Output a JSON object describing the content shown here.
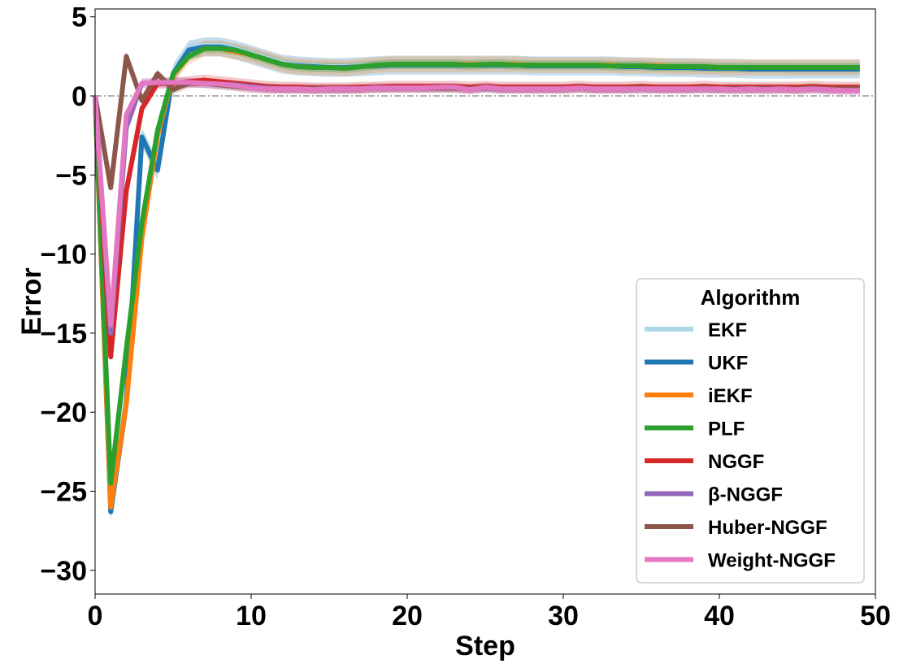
{
  "chart_data": {
    "type": "line",
    "xlabel": "Step",
    "ylabel": "Error",
    "xlim": [
      0,
      50
    ],
    "ylim": [
      -31.5,
      5.5
    ],
    "xticks": [
      0,
      10,
      20,
      30,
      40,
      50
    ],
    "yticks": [
      5,
      0,
      -5,
      -10,
      -15,
      -20,
      -25,
      -30
    ],
    "ytick_labels": [
      "5",
      "0",
      "−5",
      "−10",
      "−15",
      "−20",
      "−25",
      "−30"
    ],
    "reference_line": {
      "y": 0,
      "style": "dash-dot",
      "color": "#808080"
    },
    "legend": {
      "title": "Algorithm",
      "placement": "lower-right"
    },
    "grid": false,
    "series": [
      {
        "name": "EKF",
        "color": "#add8e6",
        "x": [
          0,
          1,
          2,
          3,
          4,
          5,
          6,
          7,
          8,
          9,
          10,
          11,
          12,
          13,
          14,
          15,
          16,
          17,
          18,
          19,
          20,
          21,
          22,
          23,
          24,
          25,
          26,
          27,
          28,
          29,
          30,
          31,
          32,
          33,
          34,
          35,
          36,
          37,
          38,
          39,
          40,
          41,
          42,
          43,
          44,
          45,
          46,
          47,
          48,
          49
        ],
        "values": [
          0,
          -26,
          -19,
          -2.5,
          -4.5,
          1.5,
          3.0,
          3.2,
          3.2,
          3.0,
          2.7,
          2.4,
          2.1,
          1.95,
          1.9,
          1.85,
          1.85,
          1.9,
          1.95,
          2.0,
          2.0,
          2.0,
          2.0,
          2.0,
          2.0,
          2.0,
          2.0,
          2.0,
          1.95,
          1.95,
          1.95,
          1.95,
          1.95,
          1.95,
          1.9,
          1.9,
          1.85,
          1.85,
          1.85,
          1.8,
          1.8,
          1.8,
          1.75,
          1.75,
          1.75,
          1.7,
          1.7,
          1.7,
          1.7,
          1.7
        ],
        "band": 0.3
      },
      {
        "name": "UKF",
        "color": "#1f77b4",
        "x": [
          0,
          1,
          2,
          3,
          4,
          5,
          6,
          7,
          8,
          9,
          10,
          11,
          12,
          13,
          14,
          15,
          16,
          17,
          18,
          19,
          20,
          21,
          22,
          23,
          24,
          25,
          26,
          27,
          28,
          29,
          30,
          31,
          32,
          33,
          34,
          35,
          36,
          37,
          38,
          39,
          40,
          41,
          42,
          43,
          44,
          45,
          46,
          47,
          48,
          49
        ],
        "values": [
          0,
          -26.3,
          -19.5,
          -2.6,
          -4.7,
          1.4,
          2.9,
          3.1,
          3.1,
          2.9,
          2.6,
          2.3,
          2.0,
          1.9,
          1.85,
          1.8,
          1.8,
          1.85,
          1.9,
          1.95,
          1.95,
          1.95,
          1.95,
          1.95,
          1.95,
          1.95,
          1.95,
          1.95,
          1.9,
          1.9,
          1.9,
          1.9,
          1.9,
          1.9,
          1.85,
          1.85,
          1.8,
          1.8,
          1.8,
          1.75,
          1.75,
          1.75,
          1.7,
          1.7,
          1.7,
          1.7,
          1.7,
          1.7,
          1.7,
          1.7
        ],
        "band": 0.6
      },
      {
        "name": "iEKF",
        "color": "#ff7f0e",
        "x": [
          0,
          1,
          2,
          3,
          4,
          5,
          6,
          7,
          8,
          9,
          10,
          11,
          12,
          13,
          14,
          15,
          16,
          17,
          18,
          19,
          20,
          21,
          22,
          23,
          24,
          25,
          26,
          27,
          28,
          29,
          30,
          31,
          32,
          33,
          34,
          35,
          36,
          37,
          38,
          39,
          40,
          41,
          42,
          43,
          44,
          45,
          46,
          47,
          48,
          49
        ],
        "values": [
          0,
          -26,
          -19.5,
          -9,
          -2.5,
          1.3,
          2.5,
          3.0,
          3.0,
          2.8,
          2.6,
          2.3,
          2.0,
          1.85,
          1.8,
          1.8,
          1.75,
          1.85,
          1.95,
          2.0,
          2.0,
          2.0,
          2.0,
          2.0,
          2.0,
          2.0,
          2.0,
          2.0,
          1.95,
          1.95,
          1.95,
          1.95,
          1.95,
          1.95,
          1.9,
          1.9,
          1.9,
          1.85,
          1.85,
          1.85,
          1.8,
          1.8,
          1.8,
          1.8,
          1.8,
          1.8,
          1.8,
          1.8,
          1.8,
          1.8
        ],
        "band": 0.5
      },
      {
        "name": "PLF",
        "color": "#2ca02c",
        "x": [
          0,
          1,
          2,
          3,
          4,
          5,
          6,
          7,
          8,
          9,
          10,
          11,
          12,
          13,
          14,
          15,
          16,
          17,
          18,
          19,
          20,
          21,
          22,
          23,
          24,
          25,
          26,
          27,
          28,
          29,
          30,
          31,
          32,
          33,
          34,
          35,
          36,
          37,
          38,
          39,
          40,
          41,
          42,
          43,
          44,
          45,
          46,
          47,
          48,
          49
        ],
        "values": [
          0,
          -24.5,
          -16,
          -8,
          -2.2,
          1.4,
          2.5,
          3.0,
          3.0,
          2.9,
          2.6,
          2.3,
          2.0,
          1.85,
          1.8,
          1.8,
          1.75,
          1.85,
          1.95,
          2.0,
          2.0,
          2.0,
          2.0,
          2.0,
          1.95,
          2.0,
          2.0,
          1.95,
          1.95,
          1.95,
          1.95,
          1.95,
          1.95,
          1.9,
          1.9,
          1.9,
          1.85,
          1.85,
          1.85,
          1.85,
          1.8,
          1.8,
          1.8,
          1.8,
          1.8,
          1.8,
          1.8,
          1.8,
          1.8,
          1.8
        ],
        "band": 0.3
      },
      {
        "name": "NGGF",
        "color": "#d62728",
        "x": [
          0,
          1,
          2,
          3,
          4,
          5,
          6,
          7,
          8,
          9,
          10,
          11,
          12,
          13,
          14,
          15,
          16,
          17,
          18,
          19,
          20,
          21,
          22,
          23,
          24,
          25,
          26,
          27,
          28,
          29,
          30,
          31,
          32,
          33,
          34,
          35,
          36,
          37,
          38,
          39,
          40,
          41,
          42,
          43,
          44,
          45,
          46,
          47,
          48,
          49
        ],
        "values": [
          0,
          -16.5,
          -6,
          -0.8,
          0.8,
          0.8,
          0.9,
          1.0,
          0.9,
          0.8,
          0.7,
          0.6,
          0.55,
          0.55,
          0.5,
          0.5,
          0.5,
          0.55,
          0.55,
          0.6,
          0.6,
          0.6,
          0.6,
          0.6,
          0.55,
          0.6,
          0.55,
          0.55,
          0.55,
          0.55,
          0.55,
          0.6,
          0.55,
          0.55,
          0.55,
          0.6,
          0.55,
          0.55,
          0.55,
          0.6,
          0.55,
          0.55,
          0.55,
          0.55,
          0.55,
          0.55,
          0.6,
          0.55,
          0.55,
          0.55
        ],
        "band": 0.35
      },
      {
        "name": "β-NGGF",
        "color": "#9467bd",
        "x": [
          0,
          1,
          2,
          3,
          4,
          5,
          6,
          7,
          8,
          9,
          10,
          11,
          12,
          13,
          14,
          15,
          16,
          17,
          18,
          19,
          20,
          21,
          22,
          23,
          24,
          25,
          26,
          27,
          28,
          29,
          30,
          31,
          32,
          33,
          34,
          35,
          36,
          37,
          38,
          39,
          40,
          41,
          42,
          43,
          44,
          45,
          46,
          47,
          48,
          49
        ],
        "values": [
          0,
          -15,
          -2,
          0.8,
          0.85,
          0.85,
          0.85,
          0.8,
          0.75,
          0.7,
          0.6,
          0.5,
          0.45,
          0.45,
          0.45,
          0.45,
          0.45,
          0.45,
          0.5,
          0.5,
          0.5,
          0.5,
          0.5,
          0.5,
          0.45,
          0.5,
          0.45,
          0.45,
          0.45,
          0.45,
          0.45,
          0.5,
          0.45,
          0.45,
          0.45,
          0.45,
          0.45,
          0.45,
          0.45,
          0.45,
          0.45,
          0.45,
          0.45,
          0.45,
          0.45,
          0.4,
          0.45,
          0.4,
          0.4,
          0.4
        ],
        "band": 0.3
      },
      {
        "name": "Huber-NGGF",
        "color": "#8c564b",
        "x": [
          0,
          1,
          2,
          3,
          4,
          5,
          6,
          7,
          8,
          9,
          10,
          11,
          12,
          13,
          14,
          15,
          16,
          17,
          18,
          19,
          20,
          21,
          22,
          23,
          24,
          25,
          26,
          27,
          28,
          29,
          30,
          31,
          32,
          33,
          34,
          35,
          36,
          37,
          38,
          39,
          40,
          41,
          42,
          43,
          44,
          45,
          46,
          47,
          48,
          49
        ],
        "values": [
          0,
          -5.8,
          2.5,
          -0.3,
          1.4,
          0.4,
          0.8,
          0.8,
          0.7,
          0.6,
          0.5,
          0.45,
          0.45,
          0.45,
          0.45,
          0.45,
          0.45,
          0.45,
          0.5,
          0.5,
          0.5,
          0.5,
          0.5,
          0.5,
          0.45,
          0.55,
          0.45,
          0.45,
          0.45,
          0.45,
          0.45,
          0.5,
          0.45,
          0.45,
          0.45,
          0.5,
          0.45,
          0.45,
          0.45,
          0.5,
          0.45,
          0.45,
          0.45,
          0.45,
          0.45,
          0.45,
          0.5,
          0.45,
          0.45,
          0.45
        ],
        "band": 0.3
      },
      {
        "name": "Weight-NGGF",
        "color": "#e377c2",
        "x": [
          0,
          1,
          2,
          3,
          4,
          5,
          6,
          7,
          8,
          9,
          10,
          11,
          12,
          13,
          14,
          15,
          16,
          17,
          18,
          19,
          20,
          21,
          22,
          23,
          24,
          25,
          26,
          27,
          28,
          29,
          30,
          31,
          32,
          33,
          34,
          35,
          36,
          37,
          38,
          39,
          40,
          41,
          42,
          43,
          44,
          45,
          46,
          47,
          48,
          49
        ],
        "values": [
          0,
          -14.5,
          -1.2,
          0.8,
          0.85,
          0.85,
          0.85,
          0.8,
          0.75,
          0.65,
          0.5,
          0.45,
          0.45,
          0.45,
          0.4,
          0.45,
          0.45,
          0.45,
          0.5,
          0.5,
          0.5,
          0.5,
          0.55,
          0.55,
          0.4,
          0.55,
          0.45,
          0.45,
          0.45,
          0.45,
          0.45,
          0.5,
          0.45,
          0.45,
          0.45,
          0.45,
          0.45,
          0.45,
          0.45,
          0.45,
          0.45,
          0.4,
          0.45,
          0.4,
          0.45,
          0.4,
          0.45,
          0.4,
          0.35,
          0.35
        ],
        "band": 0.3
      }
    ]
  }
}
